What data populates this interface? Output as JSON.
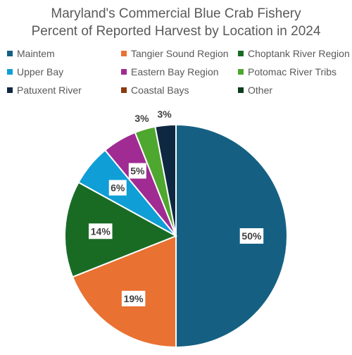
{
  "chart_data": {
    "type": "pie",
    "title_line1": "Maryland's Commercial Blue Crab Fishery",
    "title_line2": "Percent of Reported Harvest by Location in 2024",
    "legend_placement": "top",
    "slices": [
      {
        "name": "Maintem",
        "value": 50,
        "label": "50%",
        "color": "#156082"
      },
      {
        "name": "Tangier Sound Region",
        "value": 19,
        "label": "19%",
        "color": "#E97132"
      },
      {
        "name": "Choptank River Region",
        "value": 14,
        "label": "14%",
        "color": "#196B24"
      },
      {
        "name": "Upper Bay",
        "value": 6,
        "label": "6%",
        "color": "#0F9ED5"
      },
      {
        "name": "Eastern Bay Region",
        "value": 5,
        "label": "5%",
        "color": "#A02B93"
      },
      {
        "name": "Potomac River Tribs",
        "value": 3,
        "label": "3%",
        "color": "#4EA72E"
      },
      {
        "name": "Patuxent River",
        "value": 3,
        "label": "3%",
        "color": "#0E2841"
      },
      {
        "name": "Coastal Bays",
        "value": 0,
        "label": "",
        "color": "#8B3A0F"
      },
      {
        "name": "Other",
        "value": 0,
        "label": "",
        "color": "#0B3D1A"
      }
    ]
  }
}
